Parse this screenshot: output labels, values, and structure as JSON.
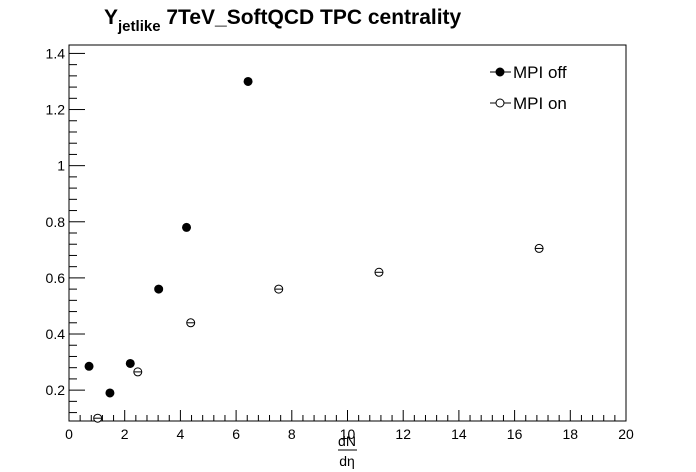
{
  "chart_data": {
    "type": "scatter",
    "title_main": "Y",
    "title_sub": "jetlike",
    "title_rest": " 7TeV_SoftQCD TPC centrality",
    "xlabel_num": "dN",
    "xlabel_den": "dη",
    "ylabel": "",
    "xlim": [
      0,
      20
    ],
    "ylim": [
      0.09,
      1.43
    ],
    "x_ticks": [
      0,
      2,
      4,
      6,
      8,
      10,
      12,
      14,
      16,
      18,
      20
    ],
    "x_tick_labels": [
      "0",
      "2",
      "4",
      "6",
      "8",
      "10",
      "12",
      "14",
      "16",
      "18",
      "20"
    ],
    "y_ticks": [
      0.2,
      0.4,
      0.6,
      0.8,
      1.0,
      1.2,
      1.4
    ],
    "y_tick_labels": [
      "0.2",
      "0.4",
      "0.6",
      "0.8",
      "1",
      "1.2",
      "1.4"
    ],
    "grid": false,
    "legend_position": "top-right",
    "series": [
      {
        "name": "MPI off",
        "marker": "filled-circle",
        "x": [
          0.72,
          1.47,
          2.2,
          3.22,
          4.22,
          6.43
        ],
        "y": [
          0.285,
          0.19,
          0.295,
          0.56,
          0.78,
          1.3
        ]
      },
      {
        "name": "MPI on",
        "marker": "open-circle",
        "x": [
          1.03,
          2.47,
          4.37,
          7.53,
          11.13,
          16.88
        ],
        "y": [
          0.1,
          0.265,
          0.44,
          0.56,
          0.62,
          0.705
        ]
      }
    ]
  }
}
